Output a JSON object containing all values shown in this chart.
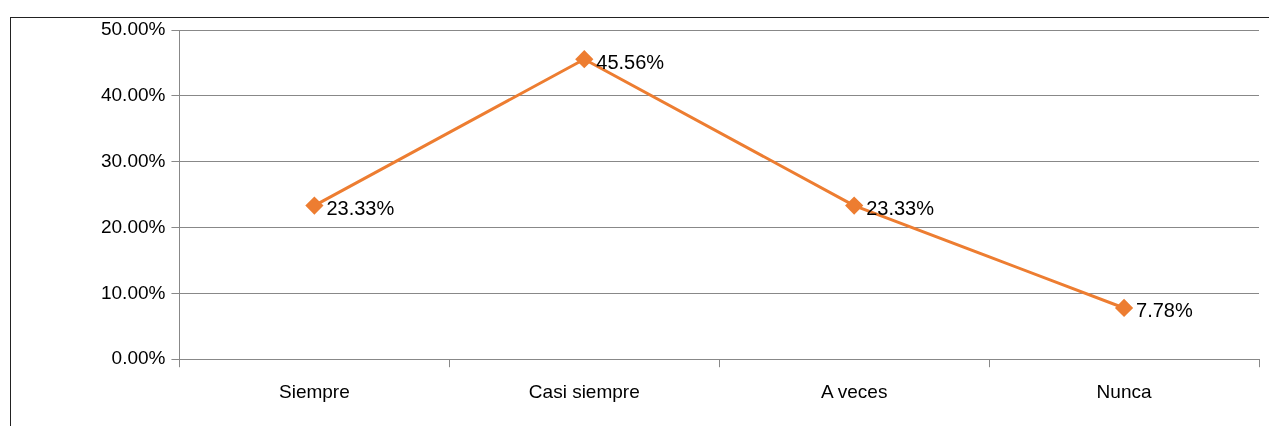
{
  "chart_data": {
    "type": "line",
    "categories": [
      "Siempre",
      "Casi siempre",
      "A veces",
      "Nunca"
    ],
    "series": [
      {
        "color": "#ed7d31",
        "values": [
          23.33,
          45.56,
          23.33,
          7.78
        ],
        "value_labels": [
          "23.33%",
          "45.56%",
          "23.33%",
          "7.78%"
        ]
      }
    ],
    "ylim": [
      0,
      50
    ],
    "yticks": [
      {
        "value": 0,
        "label": "0.00%"
      },
      {
        "value": 10,
        "label": "10.00%"
      },
      {
        "value": 20,
        "label": "20.00%"
      },
      {
        "value": 30,
        "label": "30.00%"
      },
      {
        "value": 40,
        "label": "40.00%"
      },
      {
        "value": 50,
        "label": "50.00%"
      }
    ],
    "grid": "y",
    "legend": false,
    "marker": "diamond",
    "line_style": "solid"
  }
}
